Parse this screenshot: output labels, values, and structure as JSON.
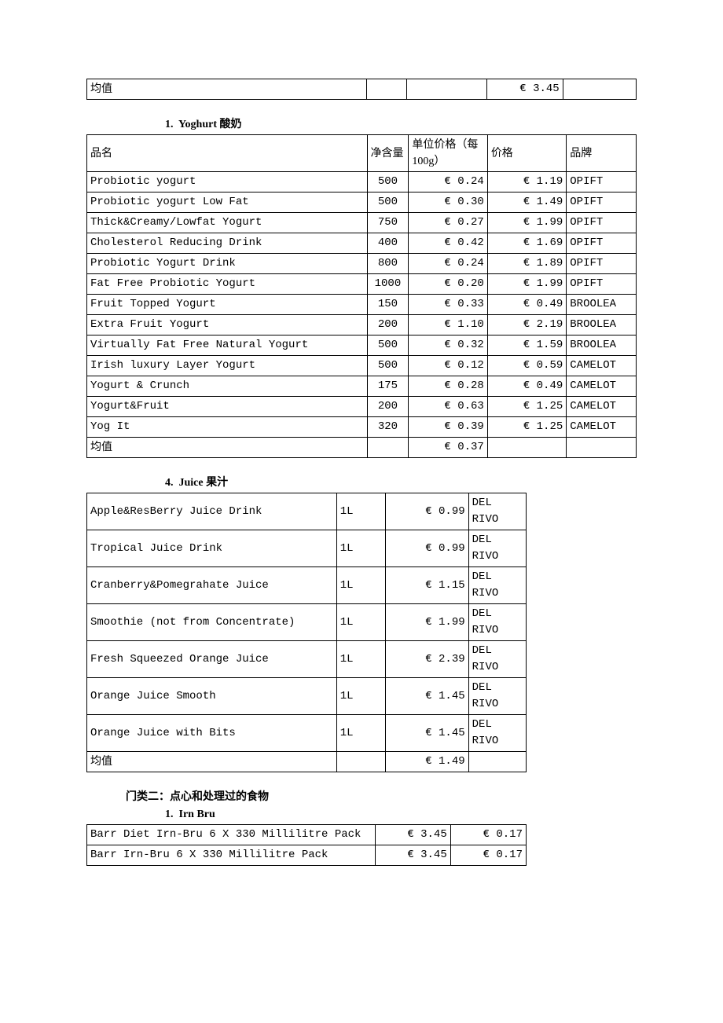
{
  "top_summary": {
    "label": "均值",
    "value": "€ 3.45"
  },
  "yoghurt": {
    "heading_num": "1.",
    "heading_en": "Yoghurt",
    "heading_cn": "酸奶",
    "columns": {
      "c1": "品名",
      "c2": "净含量",
      "c3": "单位价格（每100g）",
      "c4": "价格",
      "c5": "品牌"
    },
    "rows": [
      {
        "name": "Probiotic yogurt",
        "size": "500",
        "unit": "€ 0.24",
        "price": "€ 1.19",
        "brand": "OPIFT"
      },
      {
        "name": "Probiotic yogurt Low Fat",
        "size": "500",
        "unit": "€ 0.30",
        "price": "€ 1.49",
        "brand": "OPIFT"
      },
      {
        "name": "Thick&Creamy/Lowfat Yogurt",
        "size": "750",
        "unit": "€ 0.27",
        "price": "€ 1.99",
        "brand": "OPIFT"
      },
      {
        "name": "Cholesterol Reducing Drink",
        "size": "400",
        "unit": "€ 0.42",
        "price": "€ 1.69",
        "brand": "OPIFT"
      },
      {
        "name": "Probiotic Yogurt Drink",
        "size": "800",
        "unit": "€ 0.24",
        "price": "€ 1.89",
        "brand": "OPIFT"
      },
      {
        "name": "Fat Free Probiotic Yogurt",
        "size": "1000",
        "unit": "€ 0.20",
        "price": "€ 1.99",
        "brand": "OPIFT"
      },
      {
        "name": "Fruit Topped Yogurt",
        "size": "150",
        "unit": "€ 0.33",
        "price": "€ 0.49",
        "brand": "BROOLEA"
      },
      {
        "name": "Extra Fruit Yogurt",
        "size": "200",
        "unit": "€ 1.10",
        "price": "€ 2.19",
        "brand": "BROOLEA"
      },
      {
        "name": "Virtually Fat Free Natural Yogurt",
        "size": "500",
        "unit": "€ 0.32",
        "price": "€ 1.59",
        "brand": "BROOLEA"
      },
      {
        "name": "Irish luxury Layer Yogurt",
        "size": "500",
        "unit": "€ 0.12",
        "price": "€ 0.59",
        "brand": "CAMELOT"
      },
      {
        "name": "Yogurt & Crunch",
        "size": "175",
        "unit": "€ 0.28",
        "price": "€ 0.49",
        "brand": "CAMELOT"
      },
      {
        "name": "Yogurt&Fruit",
        "size": "200",
        "unit": "€ 0.63",
        "price": "€ 1.25",
        "brand": "CAMELOT"
      },
      {
        "name": "Yog It",
        "size": "320",
        "unit": "€ 0.39",
        "price": "€ 1.25",
        "brand": "CAMELOT"
      }
    ],
    "avg_label": "均值",
    "avg_value": "€ 0.37"
  },
  "juice": {
    "heading_num": "4.",
    "heading_en": "Juice",
    "heading_cn": "果汁",
    "rows": [
      {
        "name": "Apple&ResBerry Juice Drink",
        "size": "1L",
        "price": "€ 0.99",
        "brand": "DEL RIVO"
      },
      {
        "name": "Tropical Juice Drink",
        "size": "1L",
        "price": "€ 0.99",
        "brand": "DEL RIVO"
      },
      {
        "name": "Cranberry&Pomegrahate Juice",
        "size": "1L",
        "price": "€ 1.15",
        "brand": "DEL RIVO"
      },
      {
        "name": "Smoothie (not from Concentrate)",
        "size": "1L",
        "price": "€ 1.99",
        "brand": "DEL RIVO"
      },
      {
        "name": "Fresh Squeezed Orange Juice",
        "size": "1L",
        "price": "€ 2.39",
        "brand": "DEL RIVO"
      },
      {
        "name": "Orange Juice Smooth",
        "size": "1L",
        "price": "€ 1.45",
        "brand": "DEL RIVO"
      },
      {
        "name": "Orange Juice with Bits",
        "size": "1L",
        "price": "€ 1.45",
        "brand": "DEL RIVO"
      }
    ],
    "avg_label": "均值",
    "avg_value": "€ 1.49"
  },
  "category2": {
    "heading": "门类二：点心和处理过的食物"
  },
  "irnbru": {
    "heading_num": "1.",
    "heading_en": "Irn Bru",
    "rows": [
      {
        "name": "Barr Diet Irn-Bru 6 X 330 Millilitre Pack",
        "price": "€ 3.45",
        "unit": "€ 0.17"
      },
      {
        "name": "Barr Irn-Bru 6 X 330 Millilitre Pack",
        "price": "€ 3.45",
        "unit": "€ 0.17"
      }
    ]
  }
}
